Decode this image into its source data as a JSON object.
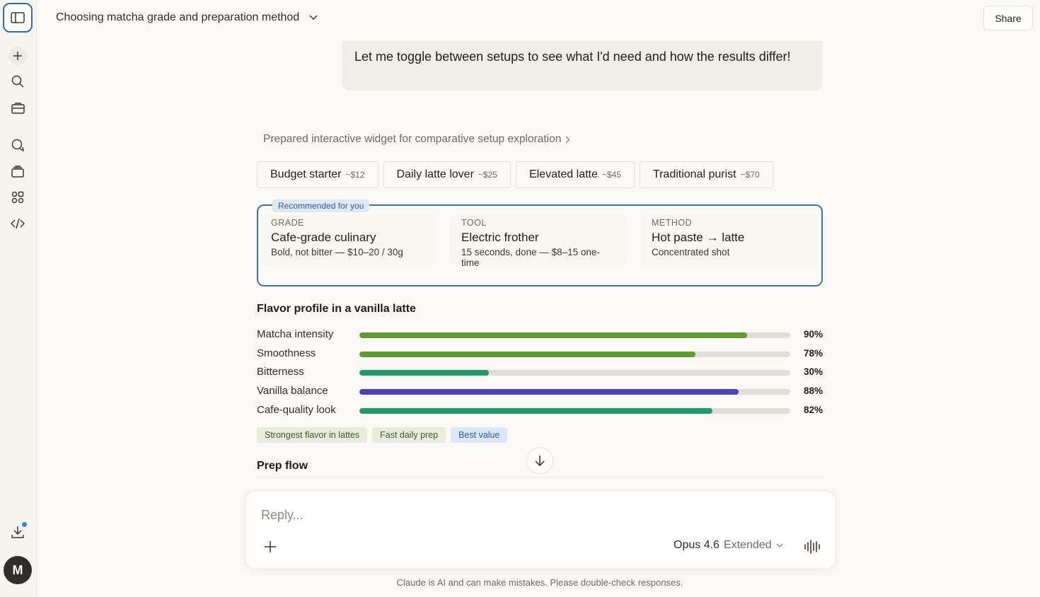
{
  "header": {
    "chat_title": "Choosing matcha grade and preparation method",
    "share_label": "Share"
  },
  "sidebar": {
    "avatar_initial": "M",
    "icons": [
      "sidebar-toggle-icon",
      "plus-icon",
      "search-icon",
      "briefcase-icon",
      "chat-bubbles-icon",
      "stack-icon",
      "apps-icon",
      "code-icon",
      "download-icon"
    ]
  },
  "user_message": "Let me toggle between setups to see what I'd need and how the results differ!",
  "tool_status": "Prepared interactive widget for comparative setup exploration",
  "tabs": [
    {
      "label": "Budget starter",
      "price": "~$12"
    },
    {
      "label": "Daily latte lover",
      "price": "~$25"
    },
    {
      "label": "Elevated latte",
      "price": "~$45"
    },
    {
      "label": "Traditional purist",
      "price": "~$70"
    }
  ],
  "recommendation": {
    "badge": "Recommended for you",
    "columns": [
      {
        "label": "GRADE",
        "value": "Cafe-grade culinary",
        "sub": "Bold, not bitter — $10–20 / 30g"
      },
      {
        "label": "TOOL",
        "value": "Electric frother",
        "sub": "15 seconds, done — $8–15 one-time"
      },
      {
        "label": "METHOD",
        "value": "Hot paste → latte",
        "sub": "Concentrated shot"
      }
    ]
  },
  "flavor": {
    "title": "Flavor profile in a vanilla latte",
    "rows": [
      {
        "name": "Matcha intensity",
        "value": 90,
        "pct": "90%",
        "color": "#5e9a2e"
      },
      {
        "name": "Smoothness",
        "value": 78,
        "pct": "78%",
        "color": "#5e9a2e"
      },
      {
        "name": "Bitterness",
        "value": 30,
        "pct": "30%",
        "color": "#1f9a6e"
      },
      {
        "name": "Vanilla balance",
        "value": 88,
        "pct": "88%",
        "color": "#4d43b8"
      },
      {
        "name": "Cafe-quality look",
        "value": 82,
        "pct": "82%",
        "color": "#1f9a6e"
      }
    ]
  },
  "chips": [
    {
      "label": "Strongest flavor in lattes",
      "tone": "green"
    },
    {
      "label": "Fast daily prep",
      "tone": "green"
    },
    {
      "label": "Best value",
      "tone": "blue"
    }
  ],
  "prep_flow_title": "Prep flow",
  "composer": {
    "placeholder": "Reply...",
    "model": "Opus 4.6",
    "mode": "Extended"
  },
  "disclaimer": "Claude is AI and can make mistakes. Please double-check responses."
}
